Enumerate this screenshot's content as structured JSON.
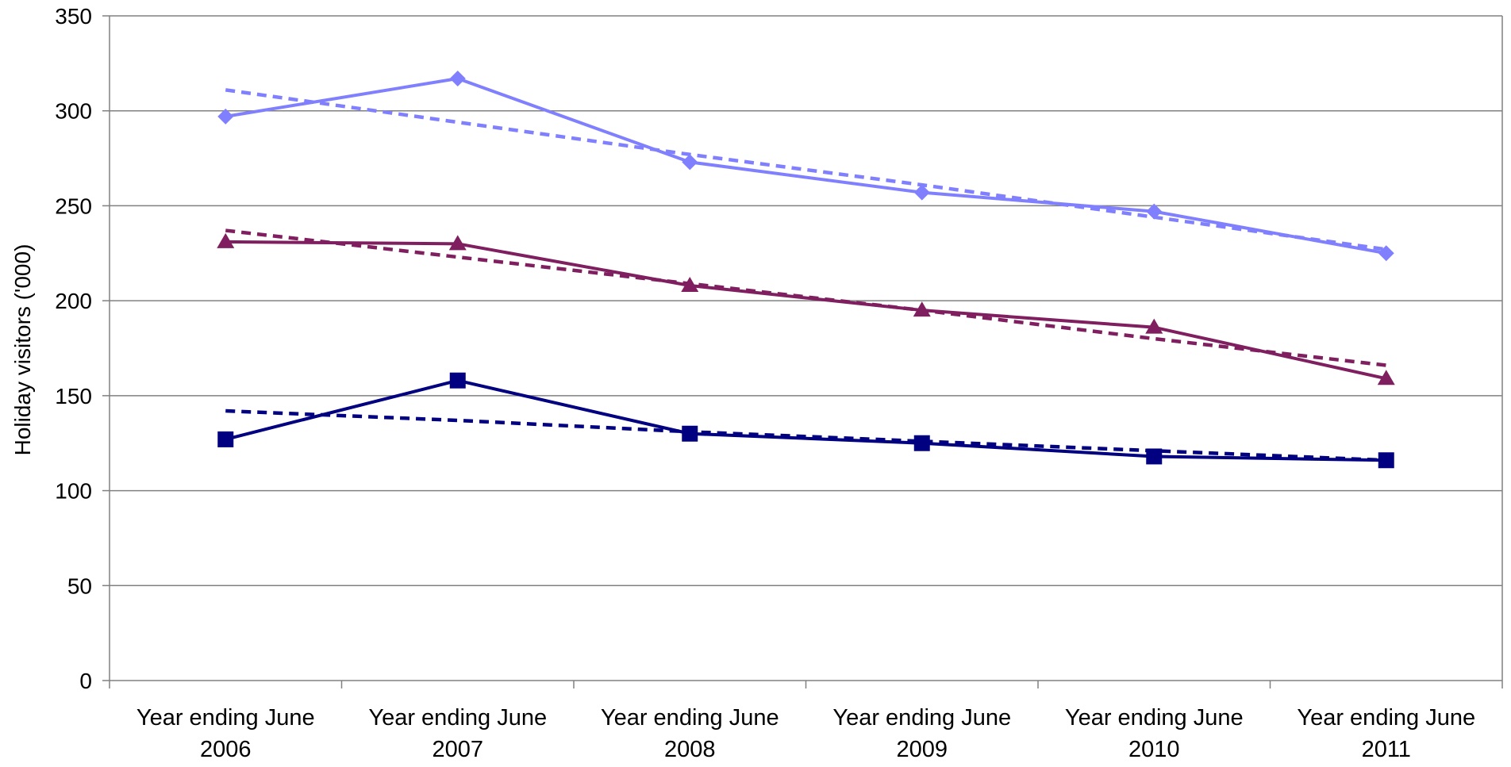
{
  "chart_data": {
    "type": "line",
    "title": "",
    "xlabel": "",
    "ylabel": "Holiday visitors ('000)",
    "ylim": [
      0,
      350
    ],
    "yticks": [
      0,
      50,
      100,
      150,
      200,
      250,
      300,
      350
    ],
    "grid": true,
    "legend": "none",
    "categories": [
      [
        "Year ending June",
        "2006"
      ],
      [
        "Year ending June",
        "2007"
      ],
      [
        "Year ending June",
        "2008"
      ],
      [
        "Year ending June",
        "2009"
      ],
      [
        "Year ending June",
        "2010"
      ],
      [
        "Year ending June",
        "2011"
      ]
    ],
    "series": [
      {
        "values": [
          297,
          317,
          273,
          257,
          247,
          225
        ],
        "color": "#8080ff",
        "marker": "diamond",
        "trend": [
          311,
          294,
          277,
          261,
          244,
          227
        ]
      },
      {
        "values": [
          231,
          230,
          208,
          195,
          186,
          159
        ],
        "color": "#7f1f5f",
        "marker": "triangle",
        "trend": [
          237,
          223,
          209,
          195,
          180,
          166
        ]
      },
      {
        "values": [
          127,
          158,
          130,
          125,
          118,
          116
        ],
        "color": "#000080",
        "marker": "square",
        "trend": [
          142,
          137,
          131,
          126,
          121,
          116
        ]
      }
    ]
  }
}
